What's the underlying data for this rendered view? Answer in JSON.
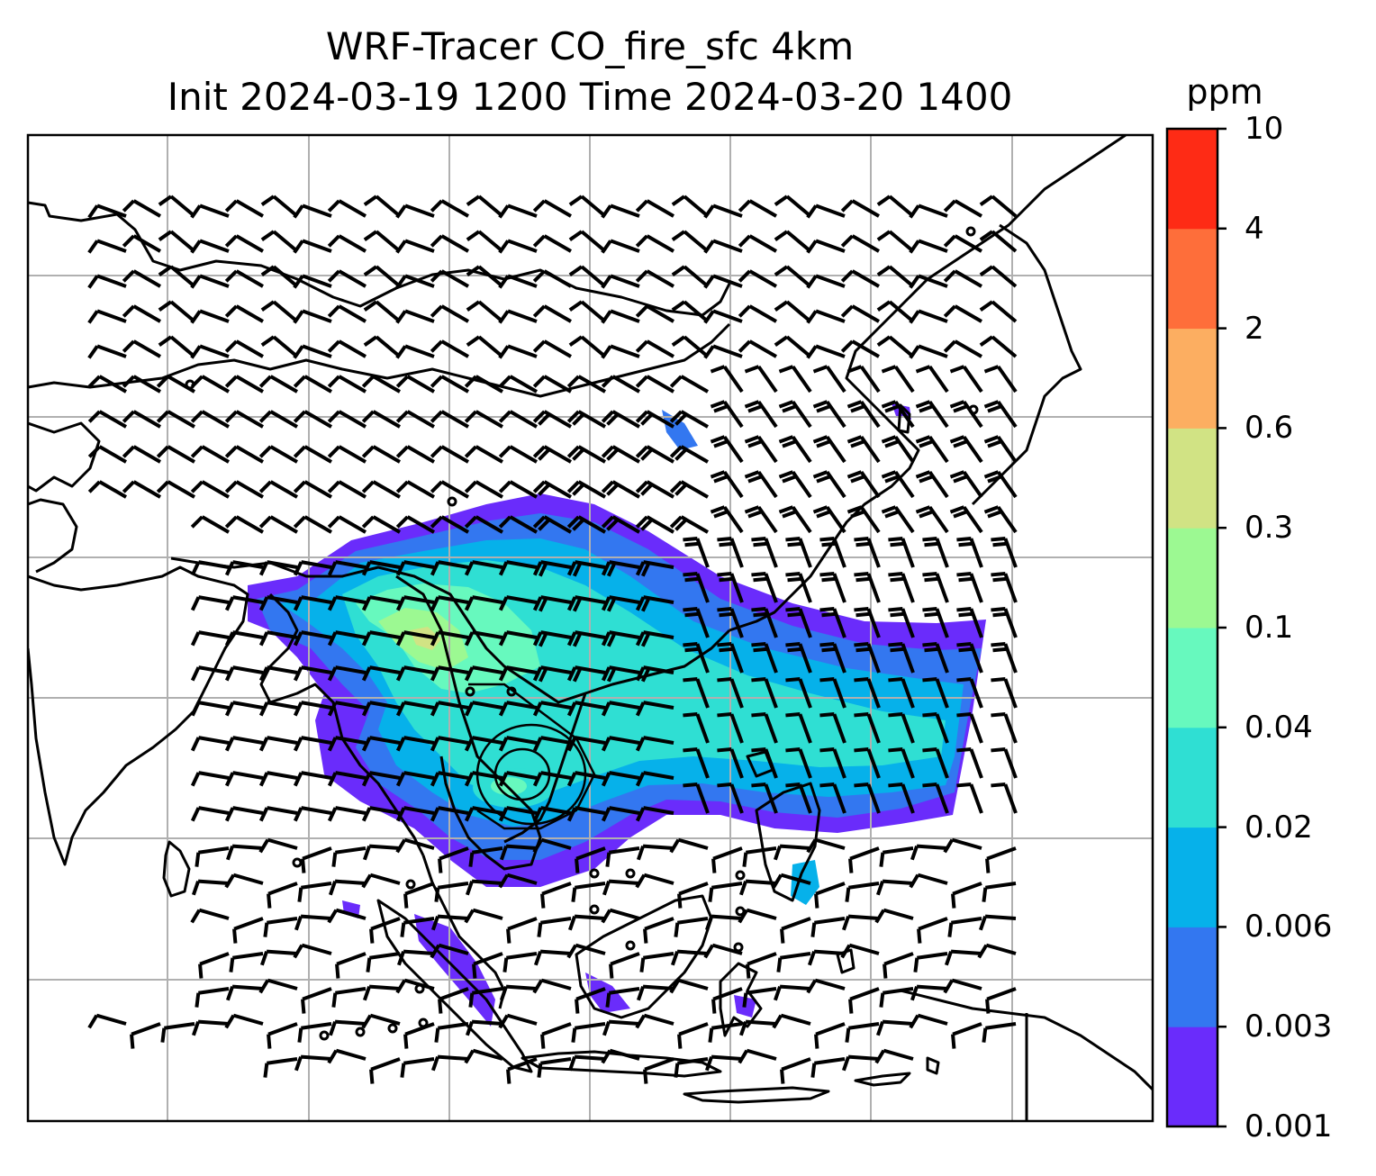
{
  "title": {
    "line1": "WRF-Tracer CO_fire_sfc 4km",
    "line2": "Init 2024-03-19 1200 Time 2024-03-20 1400"
  },
  "colorbar": {
    "unit": "ppm",
    "ticks": [
      "0.001",
      "0.003",
      "0.006",
      "0.02",
      "0.04",
      "0.1",
      "0.3",
      "0.6",
      "2",
      "4",
      "10"
    ],
    "colors": [
      "#6a2cfb",
      "#3377f0",
      "#06b1ea",
      "#2fdfd3",
      "#67f9be",
      "#9cf992",
      "#d1e384",
      "#fcae61",
      "#fe6e3a",
      "#fe2b15"
    ]
  },
  "map": {
    "background": "#ffffff",
    "coastline_color": "#000000",
    "gridline_color": "#b0b0b0",
    "wind_barb_color": "#000000"
  }
}
